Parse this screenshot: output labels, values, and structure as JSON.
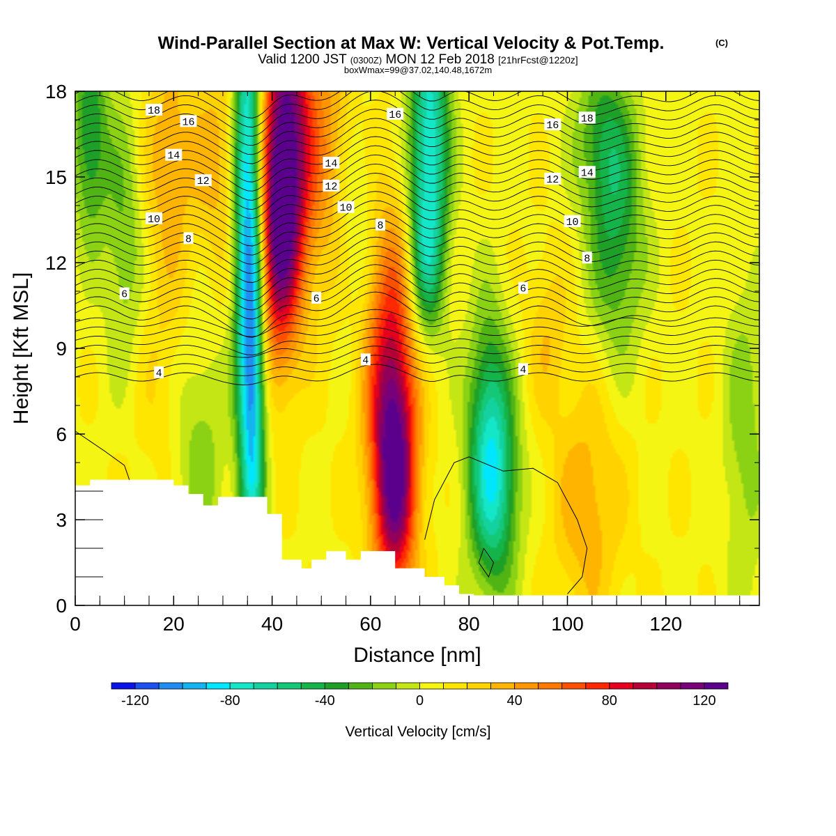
{
  "chart_data": {
    "type": "heatmap",
    "title": "Wind-Parallel Section at Max W: Vertical Velocity & Pot.Temp.",
    "title_mark": "(C)",
    "subtitle_main_a": "Valid 1200 JST",
    "subtitle_main_b": "(0300Z)",
    "subtitle_main_c": "MON 12 Feb 2018",
    "subtitle_main_d": "[21hrFcst@1220z]",
    "subtitle_small": "boxWmax=99@37.02,140.48,1672m",
    "xlabel": "Distance [nm]",
    "ylabel": "Height [Kft MSL]",
    "xlim": [
      0,
      139
    ],
    "ylim": [
      0,
      18
    ],
    "xticks": [
      0,
      20,
      40,
      60,
      80,
      100,
      120
    ],
    "yticks": [
      0,
      3,
      6,
      9,
      12,
      15,
      18
    ],
    "colorbar": {
      "label": "Vertical Velocity [cm/s]",
      "range": [
        -130,
        130
      ],
      "step": 10,
      "tick_values": [
        -120,
        -80,
        -40,
        0,
        40,
        80,
        120
      ],
      "colors": [
        "#0a14e6",
        "#1e50f0",
        "#1e8cf0",
        "#14b4f0",
        "#00e6ff",
        "#14e6c8",
        "#14d2a0",
        "#14c878",
        "#14b44b",
        "#1ea028",
        "#50b414",
        "#8cd214",
        "#c3e614",
        "#f5f514",
        "#ffe600",
        "#ffd200",
        "#ffb400",
        "#ff9600",
        "#ff7800",
        "#ff5000",
        "#ff2800",
        "#e6001e",
        "#b40037",
        "#91005a",
        "#780078",
        "#5a008c"
      ]
    },
    "updraft_cores": [
      {
        "x": 43,
        "z": 16.5,
        "w": 100,
        "sx": 3.5,
        "sz": 4.0
      },
      {
        "x": 41,
        "z": 12.5,
        "w": 70,
        "sx": 3.0,
        "sz": 3.0
      },
      {
        "x": 64.5,
        "z": 6.0,
        "w": 85,
        "sx": 3.5,
        "sz": 2.8
      },
      {
        "x": 65,
        "z": 3.0,
        "w": 60,
        "sx": 3.0,
        "sz": 2.5
      },
      {
        "x": 64,
        "z": 10.5,
        "w": 45,
        "sx": 4.0,
        "sz": 3.0
      },
      {
        "x": 52,
        "z": 16.0,
        "w": 35,
        "sx": 5.0,
        "sz": 3.5
      },
      {
        "x": 19,
        "z": 15.5,
        "w": 30,
        "sx": 4.0,
        "sz": 3.0
      },
      {
        "x": 29,
        "z": 15.5,
        "w": 25,
        "sx": 3.5,
        "sz": 3.0
      },
      {
        "x": 104,
        "z": 3.5,
        "w": 30,
        "sx": 5.0,
        "sz": 3.0
      },
      {
        "x": 96,
        "z": 9.5,
        "w": 20,
        "sx": 3.0,
        "sz": 2.0
      },
      {
        "x": 20,
        "z": 8.0,
        "w": 15,
        "sx": 6.0,
        "sz": 3.0
      }
    ],
    "downdraft_cores": [
      {
        "x": 35,
        "z": 15.0,
        "w": -95,
        "sx": 2.0,
        "sz": 6.0
      },
      {
        "x": 36,
        "z": 7.0,
        "w": -80,
        "sx": 1.8,
        "sz": 5.0
      },
      {
        "x": 72,
        "z": 16.5,
        "w": -85,
        "sx": 2.8,
        "sz": 3.5
      },
      {
        "x": 71,
        "z": 12.0,
        "w": -45,
        "sx": 2.5,
        "sz": 2.0
      },
      {
        "x": 85,
        "z": 4.0,
        "w": -75,
        "sx": 3.5,
        "sz": 2.5
      },
      {
        "x": 84,
        "z": 7.5,
        "w": -40,
        "sx": 3.0,
        "sz": 2.5
      },
      {
        "x": 110,
        "z": 13.0,
        "w": -45,
        "sx": 4.0,
        "sz": 3.0
      },
      {
        "x": 107,
        "z": 16.5,
        "w": -35,
        "sx": 4.0,
        "sz": 2.0
      },
      {
        "x": 3,
        "z": 16.5,
        "w": -50,
        "sx": 2.5,
        "sz": 2.5
      },
      {
        "x": 10,
        "z": 13.0,
        "w": -30,
        "sx": 3.0,
        "sz": 3.5
      },
      {
        "x": 25,
        "z": 6.0,
        "w": -30,
        "sx": 4.0,
        "sz": 3.5
      },
      {
        "x": 57,
        "z": 14.0,
        "w": -30,
        "sx": 3.0,
        "sz": 3.0
      },
      {
        "x": 136,
        "z": 6.0,
        "w": -25,
        "sx": 3.0,
        "sz": 4.0
      }
    ],
    "terrain": {
      "x": [
        0,
        3,
        3,
        20,
        20,
        23,
        23,
        26,
        26,
        29,
        29,
        39,
        39,
        42,
        42,
        46,
        46,
        48,
        48,
        51,
        51,
        55,
        55,
        58,
        58,
        65,
        65,
        71,
        71,
        75,
        75,
        78,
        78,
        81,
        81,
        84,
        84,
        139
      ],
      "z": [
        4.2,
        4.2,
        4.4,
        4.4,
        4.2,
        4.2,
        3.9,
        3.9,
        3.5,
        3.5,
        3.8,
        3.8,
        3.2,
        3.2,
        1.6,
        1.6,
        1.3,
        1.3,
        1.6,
        1.6,
        1.9,
        1.9,
        1.6,
        1.6,
        1.9,
        1.9,
        1.3,
        1.3,
        1.0,
        1.0,
        0.7,
        0.7,
        0.4,
        0.4,
        0.35,
        0.35,
        0.35,
        0.35
      ]
    },
    "theta_contours": [
      {
        "label": "4",
        "base": 8.2,
        "label_x": 17,
        "label2_x": 59,
        "label3_x": 91
      },
      {
        "label": "6",
        "base": 11.0,
        "label_x": 10,
        "label2_x": 49,
        "label3_x": 91
      },
      {
        "label": "8",
        "base": 12.6,
        "label_x": 23,
        "label2_x": 62,
        "label3_x": 104
      },
      {
        "label": "10",
        "base": 13.7,
        "label_x": 16,
        "label2_x": 55,
        "label3_x": 101
      },
      {
        "label": "12",
        "base": 14.8,
        "label_x": 26,
        "label2_x": 52,
        "label3_x": 97
      },
      {
        "label": "14",
        "base": 15.6,
        "label_x": 20,
        "label2_x": 52,
        "label3_x": 104
      },
      {
        "label": "16",
        "base": 16.7,
        "label_x": 23,
        "label2_x": 65,
        "label3_x": 97
      },
      {
        "label": "18",
        "base": 17.5,
        "label_x": 16,
        "label2_x": 59,
        "label3_x": 104
      }
    ]
  }
}
